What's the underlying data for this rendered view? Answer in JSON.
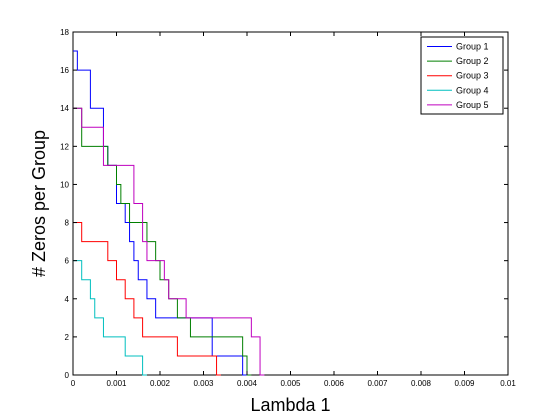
{
  "chart_data": {
    "type": "line",
    "xlabel": "Lambda 1",
    "ylabel": "# Zeros per Group",
    "xlim": [
      0,
      0.01
    ],
    "ylim": [
      0,
      18
    ],
    "xticks": [
      0,
      0.001,
      0.002,
      0.003,
      0.004,
      0.005,
      0.006,
      0.007,
      0.008,
      0.009,
      0.01
    ],
    "xtick_labels": [
      "0",
      "0.001",
      "0.002",
      "0.003",
      "0.004",
      "0.005",
      "0.006",
      "0.007",
      "0.008",
      "0.009",
      "0.01"
    ],
    "yticks": [
      0,
      2,
      4,
      6,
      8,
      10,
      12,
      14,
      16,
      18
    ],
    "ytick_labels": [
      "0",
      "2",
      "4",
      "6",
      "8",
      "10",
      "12",
      "14",
      "16",
      "18"
    ],
    "grid": false,
    "legend_position": "top-right",
    "step": true,
    "series": [
      {
        "name": "Group 1",
        "color": "#0000ff",
        "x": [
          0,
          0.0001,
          0.0004,
          0.0007,
          0.0008,
          0.001,
          0.0012,
          0.0013,
          0.0014,
          0.0015,
          0.0017,
          0.0019,
          0.0022,
          0.0027,
          0.0032,
          0.0039,
          0.004
        ],
        "y": [
          17,
          16,
          14,
          12,
          11,
          9,
          8,
          7,
          6,
          5,
          4,
          3,
          3,
          3,
          1,
          0,
          0
        ]
      },
      {
        "name": "Group 2",
        "color": "#007f00",
        "x": [
          0,
          0.0002,
          0.0008,
          0.001,
          0.0011,
          0.0013,
          0.0015,
          0.0017,
          0.0019,
          0.002,
          0.0022,
          0.0024,
          0.0027,
          0.0032,
          0.0039,
          0.004,
          0.0041
        ],
        "y": [
          14,
          12,
          11,
          10,
          9,
          8,
          8,
          7,
          6,
          5,
          4,
          3,
          2,
          2,
          1,
          0,
          0
        ]
      },
      {
        "name": "Group 3",
        "color": "#ff0000",
        "x": [
          0,
          0.0002,
          0.0005,
          0.0008,
          0.001,
          0.0012,
          0.0014,
          0.0016,
          0.0019,
          0.0024,
          0.0031,
          0.0033,
          0.0034
        ],
        "y": [
          8,
          7,
          7,
          6,
          5,
          4,
          3,
          2,
          2,
          1,
          1,
          0,
          0
        ]
      },
      {
        "name": "Group 4",
        "color": "#00bfbf",
        "x": [
          0,
          0.0002,
          0.0004,
          0.0005,
          0.0007,
          0.001,
          0.0012,
          0.0016,
          0.0017
        ],
        "y": [
          6,
          5,
          4,
          3,
          2,
          2,
          1,
          0,
          0
        ]
      },
      {
        "name": "Group 5",
        "color": "#bf00bf",
        "x": [
          0,
          0.0002,
          0.0007,
          0.001,
          0.0014,
          0.0016,
          0.0017,
          0.0019,
          0.0021,
          0.0022,
          0.0026,
          0.0029,
          0.0035,
          0.0041,
          0.0043,
          0.0044
        ],
        "y": [
          14,
          13,
          11,
          11,
          9,
          7,
          6,
          6,
          5,
          4,
          3,
          3,
          3,
          2,
          0,
          0
        ]
      }
    ]
  }
}
